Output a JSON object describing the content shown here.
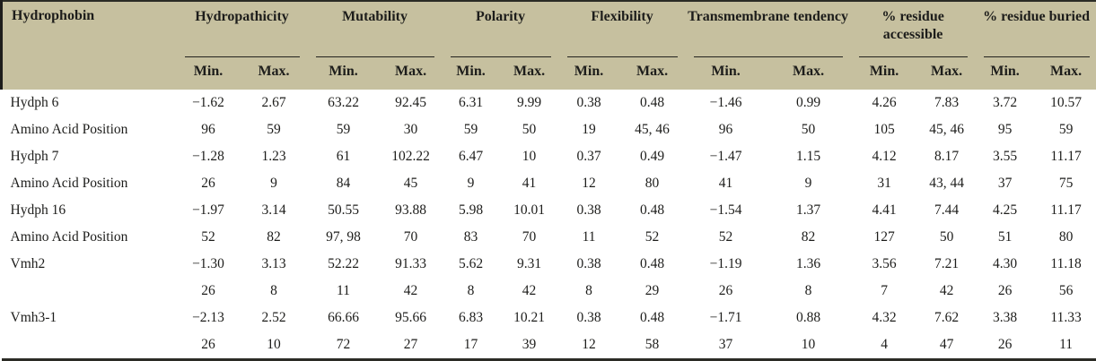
{
  "table": {
    "row_header_title": "Hydrophobin",
    "groups": [
      {
        "label": "Hydropathicity"
      },
      {
        "label": "Mutability"
      },
      {
        "label": "Polarity"
      },
      {
        "label": "Flexibility"
      },
      {
        "label": "Transmembrane tendency"
      },
      {
        "label": "% residue accessible"
      },
      {
        "label": "% residue buried"
      }
    ],
    "subheaders": [
      "Min.",
      "Max."
    ],
    "rows": [
      {
        "label": "Hydph 6",
        "values": [
          "−1.62",
          "2.67",
          "63.22",
          "92.45",
          "6.31",
          "9.99",
          "0.38",
          "0.48",
          "−1.46",
          "0.99",
          "4.26",
          "7.83",
          "3.72",
          "10.57"
        ]
      },
      {
        "label": "Amino Acid Position",
        "values": [
          "96",
          "59",
          "59",
          "30",
          "59",
          "50",
          "19",
          "45, 46",
          "96",
          "50",
          "105",
          "45, 46",
          "95",
          "59"
        ]
      },
      {
        "label": "Hydph 7",
        "values": [
          "−1.28",
          "1.23",
          "61",
          "102.22",
          "6.47",
          "10",
          "0.37",
          "0.49",
          "−1.47",
          "1.15",
          "4.12",
          "8.17",
          "3.55",
          "11.17"
        ]
      },
      {
        "label": "Amino Acid Position",
        "values": [
          "26",
          "9",
          "84",
          "45",
          "9",
          "41",
          "12",
          "80",
          "41",
          "9",
          "31",
          "43, 44",
          "37",
          "75"
        ]
      },
      {
        "label": "Hydph 16",
        "values": [
          "−1.97",
          "3.14",
          "50.55",
          "93.88",
          "5.98",
          "10.01",
          "0.38",
          "0.48",
          "−1.54",
          "1.37",
          "4.41",
          "7.44",
          "4.25",
          "11.17"
        ]
      },
      {
        "label": "Amino Acid Position",
        "values": [
          "52",
          "82",
          "97, 98",
          "70",
          "83",
          "70",
          "11",
          "52",
          "52",
          "82",
          "127",
          "50",
          "51",
          "80"
        ]
      },
      {
        "label": "Vmh2",
        "values": [
          "−1.30",
          "3.13",
          "52.22",
          "91.33",
          "5.62",
          "9.31",
          "0.38",
          "0.48",
          "−1.19",
          "1.36",
          "3.56",
          "7.21",
          "4.30",
          "11.18"
        ]
      },
      {
        "label": "",
        "values": [
          "26",
          "8",
          "11",
          "42",
          "8",
          "42",
          "8",
          "29",
          "26",
          "8",
          "7",
          "42",
          "26",
          "56"
        ]
      },
      {
        "label": "Vmh3-1",
        "values": [
          "−2.13",
          "2.52",
          "66.66",
          "95.66",
          "6.83",
          "10.21",
          "0.38",
          "0.48",
          "−1.71",
          "0.88",
          "4.32",
          "7.62",
          "3.38",
          "11.33"
        ]
      },
      {
        "label": "",
        "values": [
          "26",
          "10",
          "72",
          "27",
          "17",
          "39",
          "12",
          "58",
          "37",
          "10",
          "4",
          "47",
          "26",
          "11"
        ]
      }
    ]
  },
  "colors": {
    "header_background": "#c6c09f",
    "text": "#1d1d1b",
    "rule": "#2b2b25"
  }
}
